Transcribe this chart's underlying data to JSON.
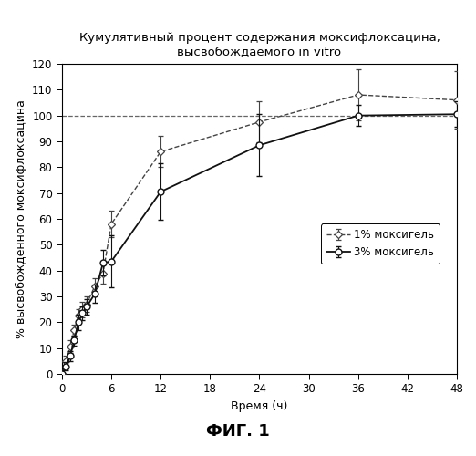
{
  "title": "Кумулятивный процент содержания моксифлоксацина,\nвысвобождаемого in vitro",
  "xlabel": "Время (ч)",
  "ylabel": "% высвобожденного моксифлоксацина",
  "fig_label": "ФИГ. 1",
  "xlim": [
    0,
    48
  ],
  "ylim": [
    0,
    120
  ],
  "xticks": [
    0,
    6,
    12,
    18,
    24,
    30,
    36,
    42,
    48
  ],
  "yticks": [
    0,
    10,
    20,
    30,
    40,
    50,
    60,
    70,
    80,
    90,
    100,
    110,
    120
  ],
  "hline_y": 100,
  "series1": {
    "label": "1% моксигель",
    "x": [
      0.0,
      0.5,
      1.0,
      1.5,
      2.0,
      2.5,
      3.0,
      4.0,
      5.0,
      6.0,
      12.0,
      24.0,
      36.0,
      48.0
    ],
    "y": [
      0.0,
      5.0,
      10.5,
      17.0,
      22.5,
      25.0,
      27.0,
      34.0,
      39.0,
      58.0,
      86.0,
      97.5,
      108.0,
      106.0
    ],
    "yerr": [
      0.5,
      2.0,
      2.5,
      2.0,
      2.5,
      3.0,
      3.0,
      3.0,
      4.0,
      5.0,
      6.0,
      8.0,
      10.0,
      11.0
    ],
    "color": "#444444",
    "linestyle": "--",
    "marker": "D",
    "markersize": 4.5
  },
  "series2": {
    "label": "3% моксигель",
    "x": [
      0.0,
      0.5,
      1.0,
      1.5,
      2.0,
      2.5,
      3.0,
      4.0,
      5.0,
      6.0,
      12.0,
      24.0,
      36.0,
      48.0
    ],
    "y": [
      0.0,
      3.0,
      7.0,
      13.0,
      20.0,
      23.5,
      26.0,
      31.0,
      43.0,
      43.5,
      70.5,
      88.5,
      100.0,
      100.5
    ],
    "yerr": [
      0.5,
      1.5,
      2.0,
      2.0,
      3.0,
      2.5,
      3.0,
      3.5,
      5.0,
      10.0,
      11.0,
      12.0,
      4.0,
      5.0
    ],
    "color": "#111111",
    "linestyle": "-",
    "marker": "o",
    "markersize": 5
  },
  "background_color": "#ffffff",
  "fontsize_title": 9.5,
  "fontsize_axis_label": 9,
  "fontsize_tick": 8.5,
  "fontsize_legend": 8.5,
  "fontsize_figlabel": 13
}
